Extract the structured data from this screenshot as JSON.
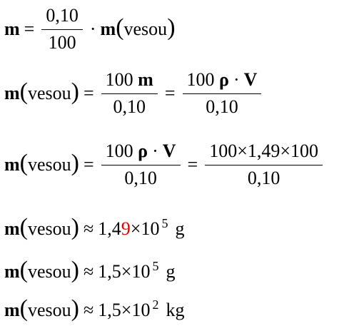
{
  "symbols": {
    "m": "m",
    "vesou": "vesou",
    "rho": "ρ",
    "V": "V",
    "equals": "=",
    "approx": "≈",
    "times": "×",
    "cdot": "·",
    "lparen": "(",
    "rparen": ")"
  },
  "eq1": {
    "num": "0,10",
    "den": "100"
  },
  "eq2": {
    "frac1_num_coef": "100",
    "frac1_den": "0,10",
    "frac2_num_coef": "100",
    "frac2_den": "0,10"
  },
  "eq3": {
    "frac1_num_coef": "100",
    "frac1_den": "0,10",
    "frac2_num": "100×1,49×100",
    "frac2_den": "0,10"
  },
  "eq4": {
    "mantissa_prefix": "1,4",
    "mantissa_highlight": "9",
    "base": "10",
    "exponent": "5",
    "unit": "g",
    "highlight_color": "#e00000"
  },
  "eq5": {
    "mantissa": "1,5",
    "base": "10",
    "exponent": "5",
    "unit": "g"
  },
  "eq6": {
    "mantissa": "1,5",
    "base": "10",
    "exponent": "2",
    "unit": "kg"
  }
}
